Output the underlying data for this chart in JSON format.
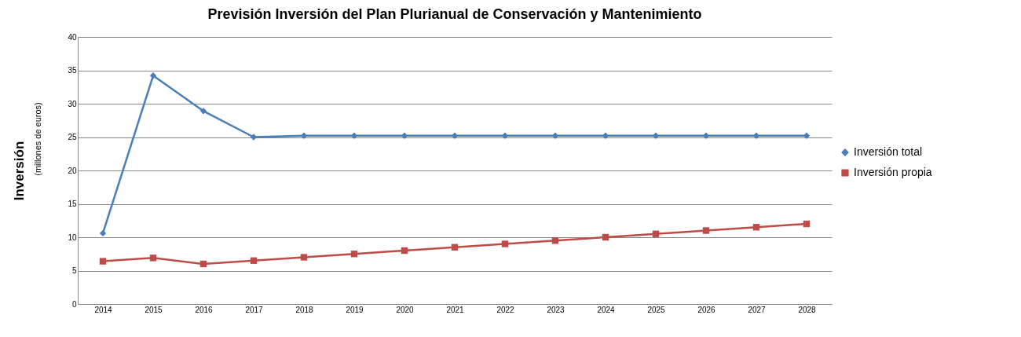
{
  "chart_data": {
    "type": "line",
    "title": "Previsión Inversión del Plan Plurianual de Conservación y Mantenimiento",
    "ylabel": "Inversión",
    "annotations": [
      "(millones de euros)"
    ],
    "categories": [
      "2014",
      "2015",
      "2016",
      "2017",
      "2018",
      "2019",
      "2020",
      "2021",
      "2022",
      "2023",
      "2024",
      "2025",
      "2026",
      "2027",
      "2028"
    ],
    "series": [
      {
        "name": "Inversión total",
        "color": "#4a7ebb",
        "marker": "diamond",
        "line_style": "solid",
        "values": [
          10.6,
          34.2,
          28.9,
          25,
          25.2,
          25.2,
          25.2,
          25.2,
          25.2,
          25.2,
          25.2,
          25.2,
          25.2,
          25.2,
          25.2
        ]
      },
      {
        "name": "Inversión propia",
        "color": "#be4b48",
        "marker": "square",
        "line_style": "solid",
        "values": [
          6.4,
          6.9,
          6.0,
          6.5,
          7.0,
          7.5,
          8.0,
          8.5,
          9.0,
          9.5,
          10.0,
          10.5,
          11.0,
          11.5,
          12.0
        ]
      }
    ],
    "ylim": [
      0,
      40
    ],
    "yticks": [
      0,
      5,
      10,
      15,
      20,
      25,
      30,
      35,
      40
    ],
    "grid": "y",
    "legend": "right"
  }
}
